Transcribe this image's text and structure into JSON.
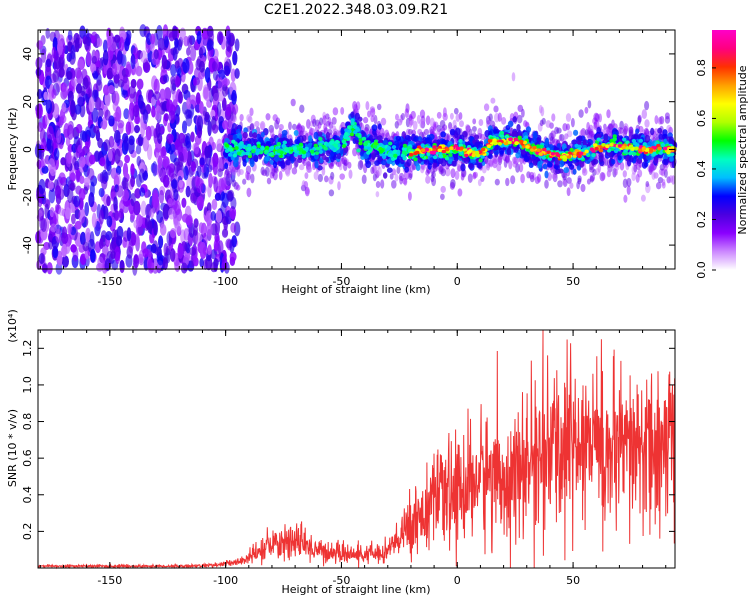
{
  "title": "C2E1.2022.348.03.09.R21",
  "chart_data": [
    {
      "type": "heatmap",
      "xlabel": "Height of straight line (km)",
      "ylabel": "Frequency (Hz)",
      "xlim": [
        -181,
        94
      ],
      "ylim": [
        -50,
        50
      ],
      "xticks": [
        -150,
        -100,
        -50,
        0,
        50
      ],
      "yticks": [
        -40,
        -20,
        0,
        20,
        40
      ],
      "colorbar": {
        "label": "Normalized spectral amplitude",
        "range": [
          0.0,
          0.95
        ],
        "ticks": [
          0.0,
          0.2,
          0.4,
          0.6,
          0.8
        ],
        "colors": [
          "#ffffff",
          "#cc88ff",
          "#8a00ff",
          "#4b00e0",
          "#0000ff",
          "#00bfff",
          "#00ffc0",
          "#00ff00",
          "#b0ff00",
          "#ffff00",
          "#ffa000",
          "#ff3000",
          "#ff0080",
          "#ff00c8"
        ]
      },
      "noise_region": [
        -181,
        -95
      ],
      "band_ridge": [
        {
          "x": -100,
          "y": 0
        },
        {
          "x": -85,
          "y": 0
        },
        {
          "x": -65,
          "y": 0
        },
        {
          "x": -50,
          "y": 2
        },
        {
          "x": -45,
          "y": 10
        },
        {
          "x": -40,
          "y": 2
        },
        {
          "x": -30,
          "y": -1
        },
        {
          "x": -20,
          "y": -1
        },
        {
          "x": 0,
          "y": 0
        },
        {
          "x": 10,
          "y": -2
        },
        {
          "x": 15,
          "y": 3
        },
        {
          "x": 25,
          "y": 4
        },
        {
          "x": 35,
          "y": -1
        },
        {
          "x": 45,
          "y": -3
        },
        {
          "x": 55,
          "y": -1
        },
        {
          "x": 65,
          "y": 2
        },
        {
          "x": 80,
          "y": 0
        },
        {
          "x": 94,
          "y": 0
        }
      ]
    },
    {
      "type": "line",
      "xlabel": "Height of straight line (km)",
      "ylabel": "SNR (10 * v/v)",
      "multiplier": "(x10⁴)",
      "xlim": [
        -181,
        94
      ],
      "ylim": [
        0,
        1.3
      ],
      "xticks": [
        -150,
        -100,
        -50,
        0,
        50
      ],
      "yticks": [
        0.2,
        0.4,
        0.6,
        0.8,
        1.0,
        1.2
      ],
      "color": "#ee3333",
      "series": [
        {
          "x": [
            -181,
            -150,
            -120,
            -105,
            -95,
            -88,
            -80,
            -75,
            -70,
            -65,
            -60,
            -55,
            -50,
            -45,
            -40,
            -35,
            -30,
            -25,
            -20,
            -15,
            -10,
            -5,
            0,
            5,
            10,
            15,
            20,
            25,
            30,
            35,
            40,
            45,
            50,
            55,
            60,
            65,
            70,
            75,
            80,
            85,
            90,
            94
          ],
          "values": [
            0.01,
            0.01,
            0.01,
            0.015,
            0.03,
            0.07,
            0.12,
            0.15,
            0.14,
            0.12,
            0.1,
            0.08,
            0.08,
            0.07,
            0.07,
            0.08,
            0.1,
            0.15,
            0.25,
            0.3,
            0.35,
            0.38,
            0.42,
            0.45,
            0.5,
            0.52,
            0.5,
            0.48,
            0.55,
            0.6,
            0.62,
            0.66,
            0.7,
            0.72,
            0.68,
            0.62,
            0.6,
            0.63,
            0.66,
            0.62,
            0.66,
            0.65
          ]
        }
      ]
    }
  ]
}
